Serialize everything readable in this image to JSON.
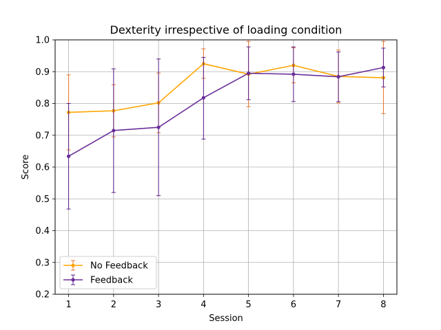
{
  "chart_data": {
    "type": "line",
    "title": "Dexterity irrespective of loading condition",
    "xlabel": "Session",
    "ylabel": "Score",
    "x": [
      1,
      2,
      3,
      4,
      5,
      6,
      7,
      8
    ],
    "xlim": [
      0.7,
      8.3
    ],
    "ylim": [
      0.2,
      1.0
    ],
    "yticks": [
      "0.2",
      "0.3",
      "0.4",
      "0.5",
      "0.6",
      "0.7",
      "0.8",
      "0.9",
      "1.0"
    ],
    "xticks": [
      "1",
      "2",
      "3",
      "4",
      "5",
      "6",
      "7",
      "8"
    ],
    "grid": true,
    "legend_position": "lower-left",
    "series": [
      {
        "name": "No Feedback",
        "color": "#ffa500",
        "errorbar_color": "#e8732a",
        "values": [
          0.772,
          0.777,
          0.802,
          0.925,
          0.892,
          0.92,
          0.885,
          0.881
        ],
        "err_low": [
          0.654,
          0.695,
          0.708,
          0.879,
          0.79,
          0.865,
          0.802,
          0.768
        ],
        "err_high": [
          0.89,
          0.859,
          0.896,
          0.972,
          0.995,
          0.975,
          0.968,
          0.995
        ]
      },
      {
        "name": "Feedback",
        "color": "#6a2e9a",
        "errorbar_color": "#5a1e8a",
        "values": [
          0.634,
          0.715,
          0.725,
          0.818,
          0.895,
          0.892,
          0.884,
          0.913
        ],
        "err_low": [
          0.468,
          0.52,
          0.51,
          0.688,
          0.812,
          0.806,
          0.806,
          0.852
        ],
        "err_high": [
          0.8,
          0.909,
          0.94,
          0.945,
          0.978,
          0.978,
          0.962,
          0.974
        ]
      }
    ]
  }
}
